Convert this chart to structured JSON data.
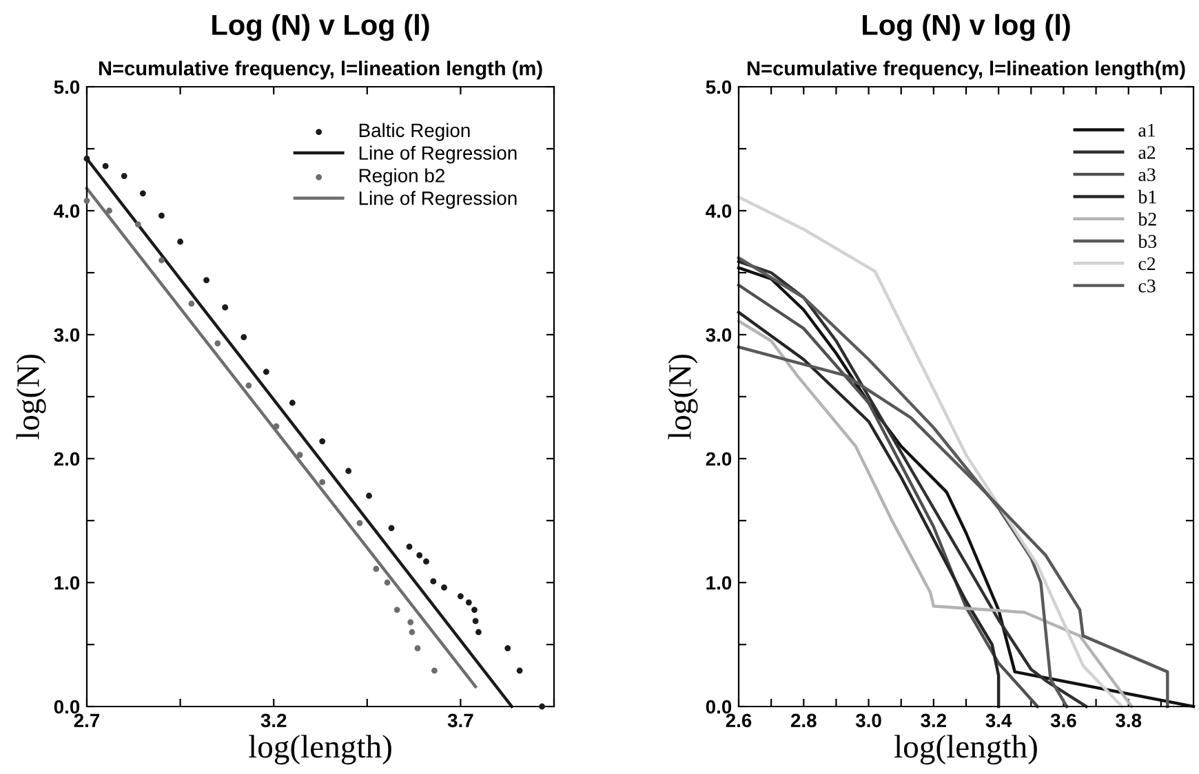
{
  "chart_data": [
    {
      "type": "scatter",
      "title": "Log (N) v Log (l)",
      "subtitle": "N=cumulative frequency, l=lineation length (m)",
      "xlabel": "log(length)",
      "ylabel": "log(N)",
      "xlim": [
        2.7,
        3.95
      ],
      "ylim": [
        0,
        5
      ],
      "xticks": [
        2.7,
        {
          "value": 2.95,
          "label": null
        },
        3.2,
        {
          "value": 3.45,
          "label": null
        },
        3.7,
        {
          "value": 3.95,
          "label": null
        }
      ],
      "yticks": [
        {
          "value": 0,
          "label": "0.0"
        },
        {
          "value": 0.5,
          "label": null
        },
        {
          "value": 1,
          "label": "1.0"
        },
        {
          "value": 1.5,
          "label": null
        },
        {
          "value": 2,
          "label": "2.0"
        },
        {
          "value": 2.5,
          "label": null
        },
        {
          "value": 3,
          "label": "3.0"
        },
        {
          "value": 3.5,
          "label": null
        },
        {
          "value": 4,
          "label": "4.0"
        },
        {
          "value": 4.5,
          "label": null
        },
        {
          "value": 5,
          "label": "5.0"
        }
      ],
      "legend": "top right",
      "grid": false,
      "series": [
        {
          "name": "Baltic Region",
          "type": "scatter",
          "marker": "circle",
          "color": "#1a1a1a",
          "x": [
            2.7,
            2.75,
            2.8,
            2.85,
            2.9,
            2.95,
            3.02,
            3.07,
            3.12,
            3.18,
            3.25,
            3.33,
            3.4,
            3.455,
            3.515,
            3.563,
            3.59,
            3.608,
            3.627,
            3.656,
            3.7,
            3.722,
            3.737,
            3.74,
            3.748,
            3.826,
            3.858,
            3.918
          ],
          "values": [
            4.42,
            4.36,
            4.28,
            4.14,
            3.96,
            3.75,
            3.44,
            3.22,
            2.98,
            2.7,
            2.45,
            2.14,
            1.9,
            1.7,
            1.44,
            1.29,
            1.22,
            1.17,
            1.01,
            0.96,
            0.89,
            0.84,
            0.78,
            0.69,
            0.6,
            0.47,
            0.29,
            0.0
          ]
        },
        {
          "name": "Line of Regression",
          "type": "line",
          "color": "#1a1a1a",
          "x": [
            2.7,
            3.837
          ],
          "values": [
            4.42,
            0
          ]
        },
        {
          "name": "Region b2",
          "type": "scatter",
          "marker": "circle",
          "color": "#6e6e6e",
          "x": [
            2.7,
            2.76,
            2.837,
            2.9,
            2.98,
            3.05,
            3.133,
            3.207,
            3.27,
            3.33,
            3.43,
            3.474,
            3.504,
            3.53,
            3.566,
            3.57,
            3.585,
            3.63
          ],
          "values": [
            4.08,
            4.0,
            3.89,
            3.6,
            3.25,
            2.93,
            2.59,
            2.26,
            2.03,
            1.81,
            1.48,
            1.11,
            1.0,
            0.78,
            0.68,
            0.6,
            0.47,
            0.29
          ]
        },
        {
          "name": "Line of Regression",
          "type": "line",
          "color": "#6e6e6e",
          "x": [
            2.7,
            3.74
          ],
          "values": [
            4.18,
            0.16
          ]
        }
      ]
    },
    {
      "type": "line",
      "title": "Log (N) v log (l)",
      "subtitle": "N=cumulative frequency, l=lineation length(m)",
      "xlabel": "log(length)",
      "ylabel": "log(N)",
      "xlim": [
        2.6,
        4.0
      ],
      "ylim": [
        0,
        5
      ],
      "xticks": [
        2.6,
        {
          "value": 2.7,
          "label": null
        },
        2.8,
        {
          "value": 2.9,
          "label": null
        },
        {
          "value": 3.0,
          "label": "3.0"
        },
        {
          "value": 3.1,
          "label": null
        },
        3.2,
        {
          "value": 3.3,
          "label": null
        },
        3.4,
        {
          "value": 3.5,
          "label": null
        },
        3.6,
        {
          "value": 3.7,
          "label": null
        },
        3.8,
        {
          "value": 3.9,
          "label": null
        }
      ],
      "yticks": [
        {
          "value": 0,
          "label": "0.0"
        },
        {
          "value": 0.5,
          "label": null
        },
        {
          "value": 1,
          "label": "1.0"
        },
        {
          "value": 1.5,
          "label": null
        },
        {
          "value": 2,
          "label": "2.0"
        },
        {
          "value": 2.5,
          "label": null
        },
        {
          "value": 3,
          "label": "3.0"
        },
        {
          "value": 3.5,
          "label": null
        },
        {
          "value": 4,
          "label": "4.0"
        },
        {
          "value": 4.5,
          "label": null
        },
        {
          "value": 5,
          "label": "5.0"
        }
      ],
      "legend": "top right",
      "grid": false,
      "line_style": "solid",
      "marker": "none",
      "series": [
        {
          "name": "a1",
          "color": "#111111",
          "x": [
            2.6,
            2.7,
            2.8,
            2.9,
            3.0,
            3.1,
            3.24,
            3.3,
            3.4,
            3.45,
            4.0
          ],
          "values": [
            3.54,
            3.45,
            3.2,
            2.85,
            2.45,
            2.1,
            1.73,
            1.4,
            0.78,
            0.28,
            0
          ]
        },
        {
          "name": "a2",
          "color": "#303030",
          "x": [
            2.6,
            2.7,
            2.8,
            2.9,
            3.0,
            3.1,
            3.2,
            3.3,
            3.4,
            3.5,
            3.55,
            3.67
          ],
          "values": [
            3.59,
            3.5,
            3.3,
            2.95,
            2.5,
            2.05,
            1.6,
            1.15,
            0.7,
            0.3,
            0.2,
            0
          ]
        },
        {
          "name": "a3",
          "color": "#505050",
          "x": [
            2.6,
            2.8,
            3.0,
            3.1,
            3.2,
            3.3,
            3.4,
            3.52
          ],
          "values": [
            3.4,
            3.05,
            2.45,
            1.95,
            1.45,
            0.8,
            0.35,
            0
          ]
        },
        {
          "name": "b1",
          "color": "#262626",
          "x": [
            2.6,
            2.8,
            3.0,
            3.1,
            3.2,
            3.3,
            3.38,
            3.4,
            3.4
          ],
          "values": [
            3.18,
            2.8,
            2.3,
            1.85,
            1.35,
            0.85,
            0.5,
            0.25,
            0
          ]
        },
        {
          "name": "b2",
          "color": "#b4b4b4",
          "x": [
            2.6,
            2.7,
            2.78,
            2.96,
            3.07,
            3.19,
            3.2,
            3.48,
            3.65,
            3.81
          ],
          "values": [
            3.11,
            2.95,
            2.67,
            2.1,
            1.51,
            0.92,
            0.81,
            0.76,
            0.57,
            0
          ]
        },
        {
          "name": "b3",
          "color": "#5a5a5a",
          "x": [
            2.6,
            2.8,
            3.0,
            3.2,
            3.4,
            3.5,
            3.53,
            3.56,
            3.61
          ],
          "values": [
            3.62,
            3.3,
            2.8,
            2.25,
            1.6,
            1.2,
            1.0,
            0.22,
            0
          ]
        },
        {
          "name": "c2",
          "color": "#d2d2d2",
          "x": [
            2.6,
            2.8,
            3.02,
            3.3,
            3.52,
            3.66,
            3.78
          ],
          "values": [
            4.11,
            3.85,
            3.51,
            2.03,
            1.14,
            0.33,
            0
          ]
        },
        {
          "name": "c3",
          "color": "#585858",
          "x": [
            2.6,
            2.93,
            3.13,
            3.34,
            3.545,
            3.65,
            3.66,
            3.92,
            3.92
          ],
          "values": [
            2.9,
            2.67,
            2.33,
            1.78,
            1.22,
            0.78,
            0.57,
            0.28,
            0
          ]
        }
      ]
    }
  ]
}
